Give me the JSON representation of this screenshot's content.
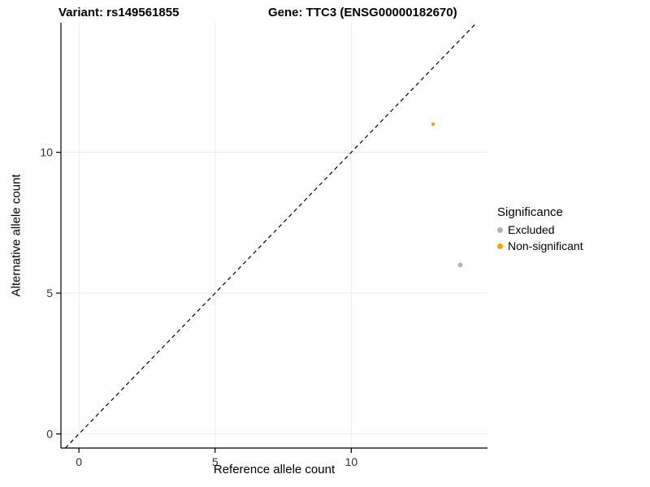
{
  "header": {
    "title_left": "Variant: rs149561855",
    "title_right": "Gene: TTC3 (ENSG00000182670)"
  },
  "chart_data": {
    "type": "scatter",
    "title_left": "Variant: rs149561855",
    "title_right": "Gene: TTC3 (ENSG00000182670)",
    "xlabel": "Reference allele count",
    "ylabel": "Alternative allele count",
    "xlim": [
      -0.66,
      15.0
    ],
    "ylim": [
      -0.5,
      14.6
    ],
    "xticks": [
      0,
      5,
      10
    ],
    "yticks": [
      0,
      5,
      10
    ],
    "grid": true,
    "identity_line": {
      "style": "dashed",
      "color": "#000000",
      "equation": "y = x"
    },
    "legend": {
      "title": "Significance",
      "position": "right"
    },
    "series": [
      {
        "name": "Excluded",
        "color": "#b4b4b4",
        "point_radius": 3.0,
        "points": [
          {
            "x": 14,
            "y": 6
          }
        ]
      },
      {
        "name": "Non-significant",
        "color": "#FFA500",
        "point_radius": 2.2,
        "points": [
          {
            "x": 13,
            "y": 11
          }
        ]
      }
    ],
    "style": {
      "grid_color": "#ececec",
      "axis_color": "#000000",
      "tick_label_color": "#333333"
    }
  }
}
